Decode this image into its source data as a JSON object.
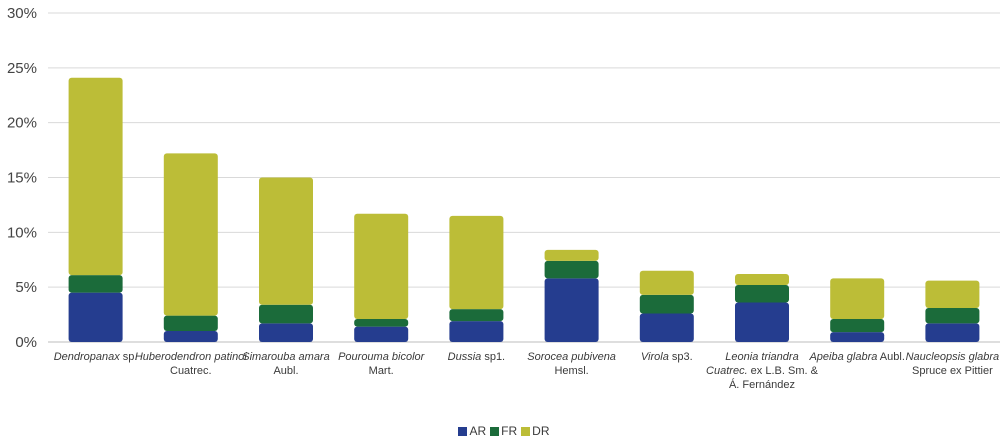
{
  "chart_data": {
    "type": "bar",
    "stacked": true,
    "title": "",
    "xlabel": "",
    "ylabel": "",
    "ylim": [
      0,
      30
    ],
    "yticks": [
      "0%",
      "5%",
      "10%",
      "15%",
      "20%",
      "25%",
      "30%"
    ],
    "grid": true,
    "legend_position": "bottom-center",
    "categories": [
      {
        "italic": "Dendropanax",
        "plain": " sp."
      },
      {
        "italic": "Huberodendron patinoi",
        "plain": " Cuatrec."
      },
      {
        "italic": "Simarouba amara",
        "plain": " Aubl."
      },
      {
        "italic": "Pourouma bicolor",
        "plain": " Mart."
      },
      {
        "italic": "Dussia",
        "plain": " sp1."
      },
      {
        "italic": "Sorocea pubivena",
        "plain": " Hemsl."
      },
      {
        "italic": "Virola",
        "plain": " sp3."
      },
      {
        "italic": "Leonia triandra Cuatrec.",
        "plain": " ex L.B. Sm. & Á. Fernández"
      },
      {
        "italic": "Apeiba glabra",
        "plain": " Aubl."
      },
      {
        "italic": "Naucleopsis glabra",
        "plain": " Spruce ex Pittier"
      }
    ],
    "series": [
      {
        "name": "AR",
        "color": "#253d8f",
        "values": [
          4.5,
          1.0,
          1.7,
          1.4,
          1.9,
          5.8,
          2.6,
          3.6,
          0.9,
          1.7
        ]
      },
      {
        "name": "FR",
        "color": "#1b6b3a",
        "values": [
          1.6,
          1.4,
          1.7,
          0.7,
          1.1,
          1.6,
          1.7,
          1.6,
          1.2,
          1.4
        ]
      },
      {
        "name": "DR",
        "color": "#bcbd37",
        "values": [
          18.0,
          14.8,
          11.6,
          9.6,
          8.5,
          1.0,
          2.2,
          1.0,
          3.7,
          2.5
        ]
      }
    ]
  }
}
